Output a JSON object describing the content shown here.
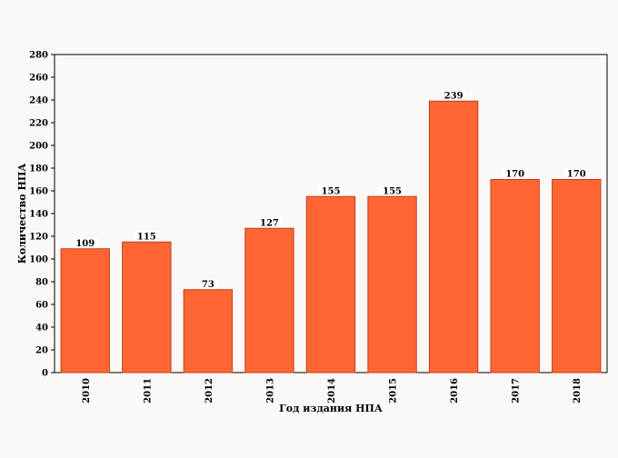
{
  "chart_data": {
    "type": "bar",
    "title": "",
    "xlabel": "Год издания НПА",
    "ylabel": "Количество НПА",
    "categories": [
      "2010",
      "2011",
      "2012",
      "2013",
      "2014",
      "2015",
      "2016",
      "2017",
      "2018"
    ],
    "values": [
      109,
      115,
      73,
      127,
      155,
      155,
      239,
      170,
      170
    ],
    "ylim": [
      0,
      280
    ],
    "y_ticks": [
      "0",
      "20",
      "40",
      "60",
      "80",
      "100",
      "120",
      "140",
      "160",
      "180",
      "200",
      "220",
      "240",
      "260",
      "280"
    ],
    "grid": false,
    "legend": "none",
    "colors": {
      "bar_fill": "#ff6633",
      "bar_stroke": "#c0401c",
      "plot_background": "#fcf8f6",
      "axis": "#000000",
      "label_background": "#ffffff"
    }
  }
}
